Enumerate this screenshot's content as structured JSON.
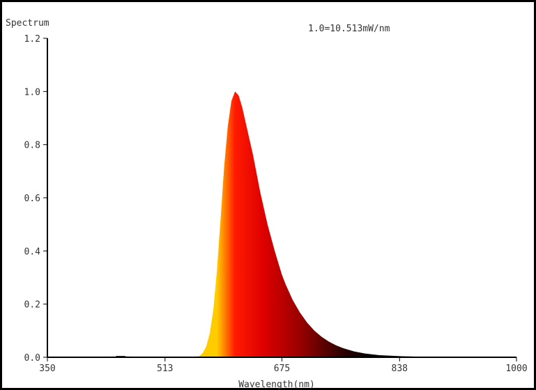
{
  "chart_data": {
    "type": "area",
    "title": "Spectrum",
    "annotation": "1.0=10.513mW/nm",
    "xlabel": "Wavelength(nm)",
    "ylabel": "",
    "xlim": [
      350,
      1000
    ],
    "ylim": [
      0,
      1.2
    ],
    "x_ticks": [
      350,
      513,
      675,
      838,
      1000
    ],
    "x_tick_labels": [
      "350",
      "513",
      "675",
      "838",
      "1000"
    ],
    "y_ticks": [
      0,
      0.2,
      0.4,
      0.6,
      0.8,
      1.0,
      1.2
    ],
    "y_tick_labels": [
      "0.0",
      "0.2",
      "0.4",
      "0.6",
      "0.8",
      "1.0",
      "1.2"
    ],
    "grid": false,
    "legend": "none",
    "series": [
      {
        "x": [
          350,
          420,
          440,
          450,
          455,
          460,
          470,
          550,
          560,
          565,
          570,
          575,
          580,
          585,
          590,
          595,
          600,
          605,
          610,
          615,
          620,
          625,
          630,
          635,
          640,
          645,
          650,
          655,
          660,
          665,
          670,
          675,
          680,
          690,
          700,
          710,
          720,
          730,
          740,
          750,
          760,
          775,
          790,
          810,
          840,
          870,
          900,
          950,
          1000
        ],
        "values": [
          0.002,
          0.002,
          0.003,
          0.004,
          0.005,
          0.004,
          0.002,
          0.002,
          0.004,
          0.015,
          0.04,
          0.09,
          0.18,
          0.33,
          0.52,
          0.72,
          0.87,
          0.965,
          1.0,
          0.985,
          0.94,
          0.88,
          0.82,
          0.76,
          0.69,
          0.62,
          0.56,
          0.5,
          0.45,
          0.4,
          0.355,
          0.31,
          0.275,
          0.215,
          0.168,
          0.13,
          0.1,
          0.077,
          0.059,
          0.045,
          0.034,
          0.022,
          0.014,
          0.008,
          0.004,
          0.002,
          0.001,
          0.0005,
          0.0003
        ]
      }
    ]
  }
}
